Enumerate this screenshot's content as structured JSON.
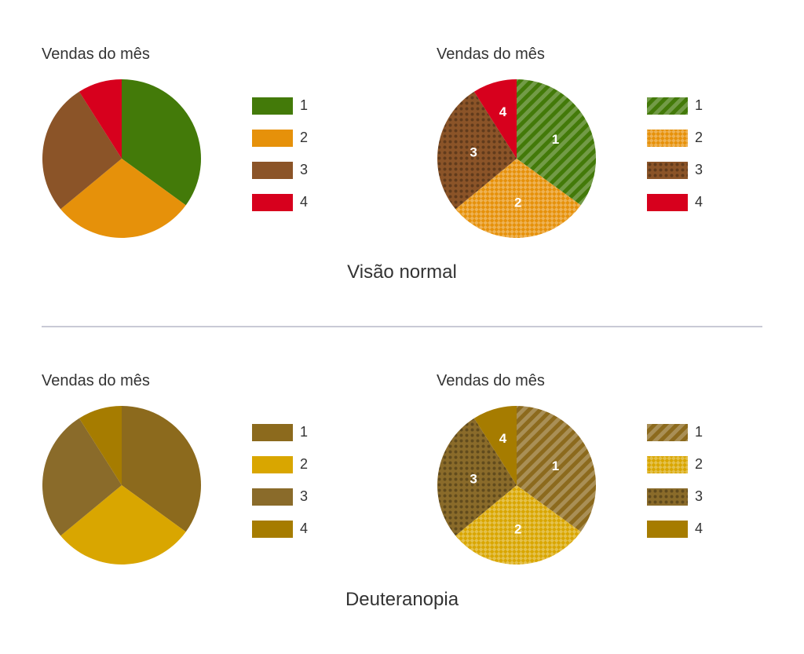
{
  "sections": [
    {
      "caption": "Visão normal",
      "charts": [
        {
          "title": "Vendas do mês",
          "patterned": false,
          "show_labels": false,
          "chart_data": {
            "type": "pie",
            "title": "Vendas do mês",
            "categories": [
              "1",
              "2",
              "3",
              "4"
            ],
            "values": [
              35,
              29,
              27,
              9
            ],
            "colors": [
              "#437a09",
              "#e6910a",
              "#8b5428",
              "#d7001d"
            ],
            "legend": "right"
          }
        },
        {
          "title": "Vendas do mês",
          "patterned": true,
          "show_labels": true,
          "chart_data": {
            "type": "pie",
            "title": "Vendas do mês",
            "categories": [
              "1",
              "2",
              "3",
              "4"
            ],
            "values": [
              35,
              29,
              27,
              9
            ],
            "colors": [
              "#437a09",
              "#e6910a",
              "#8b5428",
              "#d7001d"
            ],
            "patterns": [
              "stripes",
              "checker",
              "dots",
              "solid"
            ],
            "legend": "right"
          }
        }
      ]
    },
    {
      "caption": "Deuteranopia",
      "charts": [
        {
          "title": "Vendas do mês",
          "patterned": false,
          "show_labels": false,
          "chart_data": {
            "type": "pie",
            "title": "Vendas do mês",
            "categories": [
              "1",
              "2",
              "3",
              "4"
            ],
            "values": [
              35,
              29,
              27,
              9
            ],
            "colors": [
              "#8c6a1d",
              "#d9a600",
              "#8a6b2a",
              "#a67c00"
            ],
            "legend": "right"
          }
        },
        {
          "title": "Vendas do mês",
          "patterned": true,
          "show_labels": true,
          "chart_data": {
            "type": "pie",
            "title": "Vendas do mês",
            "categories": [
              "1",
              "2",
              "3",
              "4"
            ],
            "values": [
              35,
              29,
              27,
              9
            ],
            "colors": [
              "#8c6a1d",
              "#d9a600",
              "#8a6b2a",
              "#a67c00"
            ],
            "patterns": [
              "stripes",
              "checker",
              "dots",
              "solid"
            ],
            "legend": "right"
          }
        }
      ]
    }
  ]
}
